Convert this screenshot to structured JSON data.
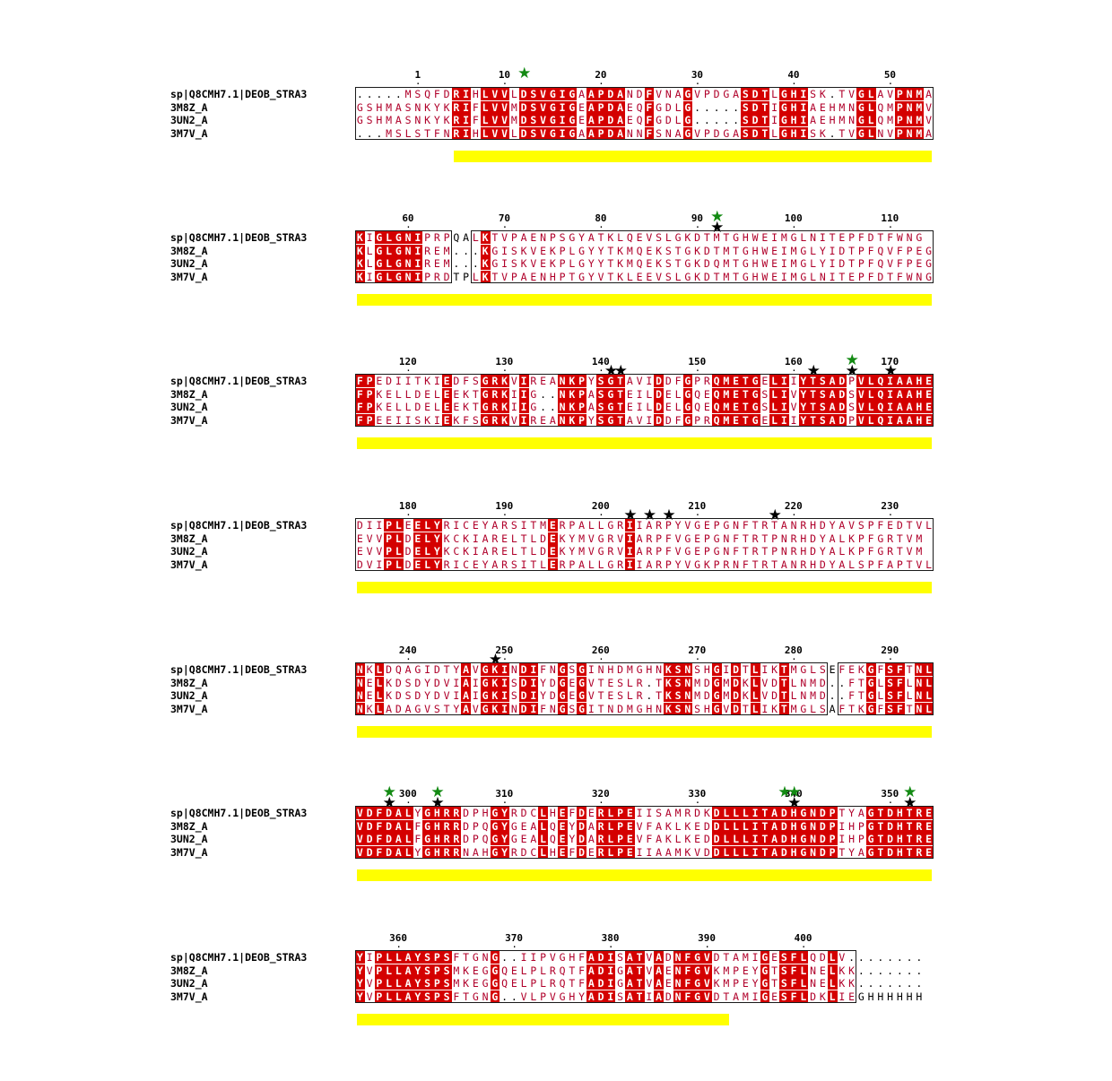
{
  "sequences": [
    "sp|Q8CMH7.1|DEOB_STRA3",
    "3M8Z_A",
    "3UN2_A",
    "3M7V_A"
  ],
  "colors": {
    "identical_background": "#d40000",
    "identical_text": "#ffffff",
    "similar_text": "#b0002a",
    "box_border": "#1a1a1a",
    "conservation_bar": "#ffff00",
    "star_black": "#000000",
    "star_green": "#138a13"
  },
  "blocks": [
    {
      "ticks": [
        {
          "pos": 6,
          "label": "1"
        },
        {
          "pos": 15,
          "label": "10"
        },
        {
          "pos": 25,
          "label": "20"
        },
        {
          "pos": 35,
          "label": "30"
        },
        {
          "pos": 45,
          "label": "40"
        },
        {
          "pos": 55,
          "label": "50"
        }
      ],
      "rows": [
        "...|.MSQFDRIHLVVLDSVGIGAAPDANDFVNAGVPDGASDTLGHISK.TVGLAVPNMA",
        "GSHMASNKYKRIFLVVMDSVGIGEAPDAEQFGDLG.....SDTIGHIAEHMNGLQMPNMV",
        "GSHMASNKYKRIFLVVMDSVGIGEAPDAEQFGDLG.....SDTIGHIAEHMNGLQMPNMV",
        "...MSLSTFNRIHLVVLDSVGIGAAPDANNFSNAGVPDGASDTLGHISK.TVGLNVPNMA"
      ],
      "stars": [
        {
          "pos": 17,
          "color": "green"
        }
      ],
      "bar": {
        "start": 10,
        "end": 59
      }
    },
    {
      "ticks": [
        {
          "pos": 5,
          "label": "60"
        },
        {
          "pos": 15,
          "label": "70"
        },
        {
          "pos": 25,
          "label": "80"
        },
        {
          "pos": 35,
          "label": "90"
        },
        {
          "pos": 45,
          "label": "100"
        },
        {
          "pos": 55,
          "label": "110"
        }
      ],
      "rows": [
        "KIGLGNIPRPQALKTVPAENPSGYATKLQEVSLGKDTMTGHWEIMGLNITEPFDTFWNG",
        "KLGLGNIREM...KGISKVEKPLGYYTKMQEKSTGKDTMTGHWEIMGLYIDTPFQVFPEG",
        "KLGLGNIREM...KGISKVEKPLGYYTKMQEKSTGKDQMTGHWEIMGLYIDTPFQVFPEG",
        "KIGLGNIPRDTPLKTVPAENHPTGYVTKLEEVSLGKDTMTGHWEIMGLNITEPFDTFWNG"
      ],
      "stars": [
        {
          "pos": 37,
          "color": "black"
        },
        {
          "pos": 37,
          "color": "green"
        }
      ],
      "bar": {
        "start": 0,
        "end": 59
      }
    },
    {
      "ticks": [
        {
          "pos": 5,
          "label": "120"
        },
        {
          "pos": 15,
          "label": "130"
        },
        {
          "pos": 25,
          "label": "140"
        },
        {
          "pos": 35,
          "label": "150"
        },
        {
          "pos": 45,
          "label": "160"
        },
        {
          "pos": 55,
          "label": "170"
        }
      ],
      "rows": [
        "FPEDIITKIEDFSGRKVIREANKPYSGTAVIDDFGPRQMETGELIIYTSADPVLQIAAHE",
        "FPKELLDELEEKTGRKIIG..NKPASGTEILDELGQEQMETGSLIVYTSADSVLQIAAHE",
        "FPKELLDELEEKTGRKIIG..NKPASGTEILDELGQEQMETGSLIVYTSADSVLQIAAHE",
        "FPEEIISKIEKFSGRKVIREANKPYSGTAVIDDFGPRQMETGELIIYTSADPVLQIAAHE"
      ],
      "stars": [
        {
          "pos": 26,
          "color": "black"
        },
        {
          "pos": 27,
          "color": "black"
        },
        {
          "pos": 47,
          "color": "black"
        },
        {
          "pos": 51,
          "color": "black"
        },
        {
          "pos": 51,
          "color": "green"
        },
        {
          "pos": 55,
          "color": "black"
        }
      ],
      "bar": {
        "start": 0,
        "end": 59
      }
    },
    {
      "ticks": [
        {
          "pos": 5,
          "label": "180"
        },
        {
          "pos": 15,
          "label": "190"
        },
        {
          "pos": 25,
          "label": "200"
        },
        {
          "pos": 35,
          "label": "210"
        },
        {
          "pos": 45,
          "label": "220"
        },
        {
          "pos": 55,
          "label": "230"
        }
      ],
      "rows": [
        "DIIPLEELYRICEYARSITMERPALLGRIIARPYVGEPGNFTRTANRHDYAVSPFEDTVL",
        "EVVPLDELYKCKIARELTLDEKYMVGRVIARPFVGEPGNFTRTPNRHDYALKPFGRTVM",
        "EVVPLDELYKCKIARELTLDEKYMVGRVIARPFVGEPGNFTRTPNRHDYALKPFGRTVM",
        "DVIPLDELYRICEYARSITLERPALLGRIIARPYVGKPRNFTRTANRHDYALSPFAPTVL"
      ],
      "stars": [
        {
          "pos": 28,
          "color": "black"
        },
        {
          "pos": 30,
          "color": "black"
        },
        {
          "pos": 32,
          "color": "black"
        },
        {
          "pos": 43,
          "color": "black"
        }
      ],
      "bar": {
        "start": 0,
        "end": 59
      }
    },
    {
      "ticks": [
        {
          "pos": 5,
          "label": "240"
        },
        {
          "pos": 15,
          "label": "250"
        },
        {
          "pos": 25,
          "label": "260"
        },
        {
          "pos": 35,
          "label": "270"
        },
        {
          "pos": 45,
          "label": "280"
        },
        {
          "pos": 55,
          "label": "290"
        }
      ],
      "rows": [
        "NKLDQAGIDTYAVGKINDIFNGSGINHDMGHNKSNSHGIDTLIKTMGLSEFEKGFSFTNL",
        "NELKDSDYDVIAIGKISDIYDGEGVTESLR.TKSNMDGMDKLVDTLNMD..FTGLSFLNL",
        "NELKDSDYDVIAIGKISDIYDGEGVTESLR.TKSNMDGMDKLVDTLNMD..FTGLSFLNL",
        "NKLADAGVSTYAVGKINDIFNGSGITNDMGHNKSNSHGVDTLIKTMGLSAFTKGFSFTNL"
      ],
      "stars": [
        {
          "pos": 14,
          "color": "black"
        }
      ],
      "bar": {
        "start": 0,
        "end": 59
      }
    },
    {
      "ticks": [
        {
          "pos": 5,
          "label": "300"
        },
        {
          "pos": 15,
          "label": "310"
        },
        {
          "pos": 25,
          "label": "320"
        },
        {
          "pos": 35,
          "label": "330"
        },
        {
          "pos": 45,
          "label": "340"
        },
        {
          "pos": 55,
          "label": "350"
        }
      ],
      "rows": [
        "VDFDALYGHRRDPHGYRDCLHEFDERLPEIISAMRDKDLLLITADHGNDPTYAGTDHTRE",
        "VDFDALFGHRRDPQGYGEALQEYDARLPEVFAKLKEDDLLLITADHGNDPIHPGTDHTRE",
        "VDFDALFGHRRDPQGYGEALQEYDARLPEVFAKLKEDDLLLITADHGNDPIHPGTDHTRE",
        "VDFDALYGHRRNAHGYRDCLHEFDERLPEIIAAMKVDDLLLITADHGNDPTYAGTDHTRE"
      ],
      "stars": [
        {
          "pos": 3,
          "color": "black"
        },
        {
          "pos": 3,
          "color": "green"
        },
        {
          "pos": 8,
          "color": "black"
        },
        {
          "pos": 8,
          "color": "green"
        },
        {
          "pos": 44,
          "color": "green"
        },
        {
          "pos": 45,
          "color": "black"
        },
        {
          "pos": 45,
          "color": "green"
        },
        {
          "pos": 57,
          "color": "black"
        },
        {
          "pos": 57,
          "color": "green"
        }
      ],
      "bar": {
        "start": 0,
        "end": 59
      }
    },
    {
      "ticks": [
        {
          "pos": 4,
          "label": "360"
        },
        {
          "pos": 16,
          "label": "370"
        },
        {
          "pos": 26,
          "label": "380"
        },
        {
          "pos": 36,
          "label": "390"
        },
        {
          "pos": 46,
          "label": "400"
        }
      ],
      "rows": [
        "YIPLLAYSPSFTGNG..IIPVGHFADISATVADNFGVDTAMIGESFLQDLV........",
        "YVPLLAYSPSMKEGGQELPLRQTFADIGATVAENFGVKMPEYGTSFLNELKK.......",
        "YVPLLAYSPSMKEGGQELPLRQTFADIGATVAENFGVKMPEYGTSFLNELKK.......",
        "YVPLLAYSPSFTGNG..VLPVGHYADISATIADNFGVDTAMIGESFLDKLIEGHHHHHH"
      ],
      "stars": [],
      "bar": {
        "start": 0,
        "end": 38
      }
    }
  ]
}
